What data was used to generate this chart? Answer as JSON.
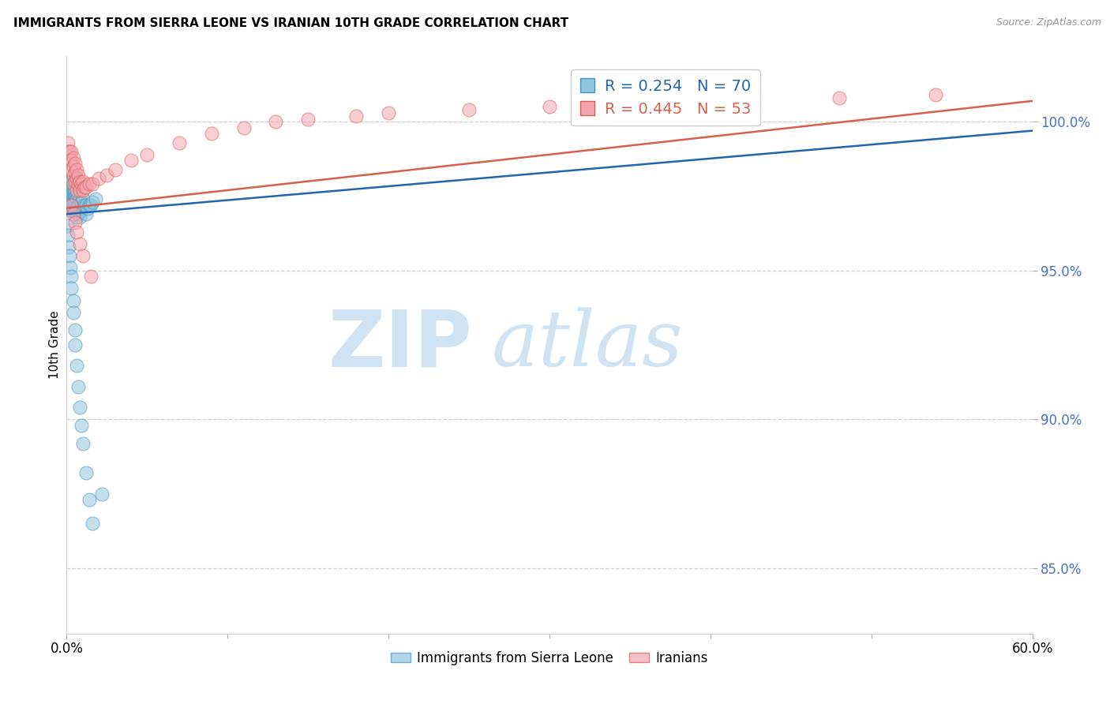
{
  "title": "IMMIGRANTS FROM SIERRA LEONE VS IRANIAN 10TH GRADE CORRELATION CHART",
  "source": "Source: ZipAtlas.com",
  "ylabel": "10th Grade",
  "y_tick_values": [
    0.85,
    0.9,
    0.95,
    1.0
  ],
  "x_range": [
    0.0,
    0.6
  ],
  "y_range": [
    0.828,
    1.022
  ],
  "blue_color": "#92c5de",
  "pink_color": "#f4a4b0",
  "blue_edge_color": "#4393c3",
  "pink_edge_color": "#d6604d",
  "blue_line_color": "#2166ac",
  "pink_line_color": "#d6604d",
  "watermark_zip_color": "#c8dff0",
  "watermark_atlas_color": "#c8dff0",
  "legend_label_blue": "Immigrants from Sierra Leone",
  "legend_label_pink": "Iranians",
  "blue_R": 0.254,
  "blue_N": 70,
  "pink_R": 0.445,
  "pink_N": 53,
  "blue_trend_x": [
    0.0,
    0.6
  ],
  "blue_trend_y": [
    0.969,
    0.997
  ],
  "pink_trend_x": [
    0.0,
    0.6
  ],
  "pink_trend_y": [
    0.971,
    1.007
  ],
  "blue_x": [
    0.0005,
    0.001,
    0.001,
    0.0015,
    0.0015,
    0.002,
    0.002,
    0.002,
    0.0025,
    0.0025,
    0.003,
    0.003,
    0.003,
    0.003,
    0.003,
    0.0035,
    0.0035,
    0.004,
    0.004,
    0.004,
    0.004,
    0.0045,
    0.0045,
    0.005,
    0.005,
    0.005,
    0.005,
    0.0055,
    0.006,
    0.006,
    0.006,
    0.006,
    0.007,
    0.007,
    0.007,
    0.008,
    0.008,
    0.008,
    0.009,
    0.009,
    0.01,
    0.01,
    0.011,
    0.012,
    0.012,
    0.013,
    0.014,
    0.015,
    0.016,
    0.018,
    0.0005,
    0.001,
    0.0015,
    0.002,
    0.0025,
    0.003,
    0.003,
    0.004,
    0.004,
    0.005,
    0.005,
    0.006,
    0.007,
    0.008,
    0.009,
    0.01,
    0.012,
    0.014,
    0.016,
    0.022
  ],
  "blue_y": [
    0.978,
    0.979,
    0.977,
    0.98,
    0.975,
    0.979,
    0.977,
    0.975,
    0.978,
    0.974,
    0.98,
    0.977,
    0.975,
    0.972,
    0.97,
    0.976,
    0.973,
    0.977,
    0.975,
    0.973,
    0.97,
    0.976,
    0.973,
    0.977,
    0.975,
    0.973,
    0.97,
    0.975,
    0.976,
    0.974,
    0.971,
    0.968,
    0.975,
    0.972,
    0.969,
    0.974,
    0.971,
    0.968,
    0.973,
    0.97,
    0.974,
    0.971,
    0.972,
    0.972,
    0.969,
    0.971,
    0.972,
    0.972,
    0.973,
    0.974,
    0.965,
    0.962,
    0.958,
    0.955,
    0.951,
    0.948,
    0.944,
    0.94,
    0.936,
    0.93,
    0.925,
    0.918,
    0.911,
    0.904,
    0.898,
    0.892,
    0.882,
    0.873,
    0.865,
    0.875
  ],
  "pink_x": [
    0.001,
    0.001,
    0.002,
    0.002,
    0.003,
    0.003,
    0.003,
    0.004,
    0.004,
    0.004,
    0.004,
    0.005,
    0.005,
    0.005,
    0.006,
    0.006,
    0.006,
    0.007,
    0.007,
    0.008,
    0.008,
    0.009,
    0.01,
    0.01,
    0.011,
    0.012,
    0.014,
    0.016,
    0.02,
    0.025,
    0.03,
    0.04,
    0.05,
    0.07,
    0.09,
    0.11,
    0.13,
    0.15,
    0.18,
    0.2,
    0.25,
    0.3,
    0.35,
    0.42,
    0.48,
    0.54,
    0.003,
    0.004,
    0.005,
    0.006,
    0.008,
    0.01,
    0.015
  ],
  "pink_y": [
    0.993,
    0.99,
    0.99,
    0.987,
    0.99,
    0.987,
    0.984,
    0.988,
    0.985,
    0.982,
    0.979,
    0.986,
    0.983,
    0.98,
    0.984,
    0.981,
    0.977,
    0.982,
    0.979,
    0.98,
    0.977,
    0.979,
    0.98,
    0.977,
    0.978,
    0.978,
    0.979,
    0.979,
    0.981,
    0.982,
    0.984,
    0.987,
    0.989,
    0.993,
    0.996,
    0.998,
    1.0,
    1.001,
    1.002,
    1.003,
    1.004,
    1.005,
    1.006,
    1.007,
    1.008,
    1.009,
    0.972,
    0.969,
    0.966,
    0.963,
    0.959,
    0.955,
    0.948
  ]
}
